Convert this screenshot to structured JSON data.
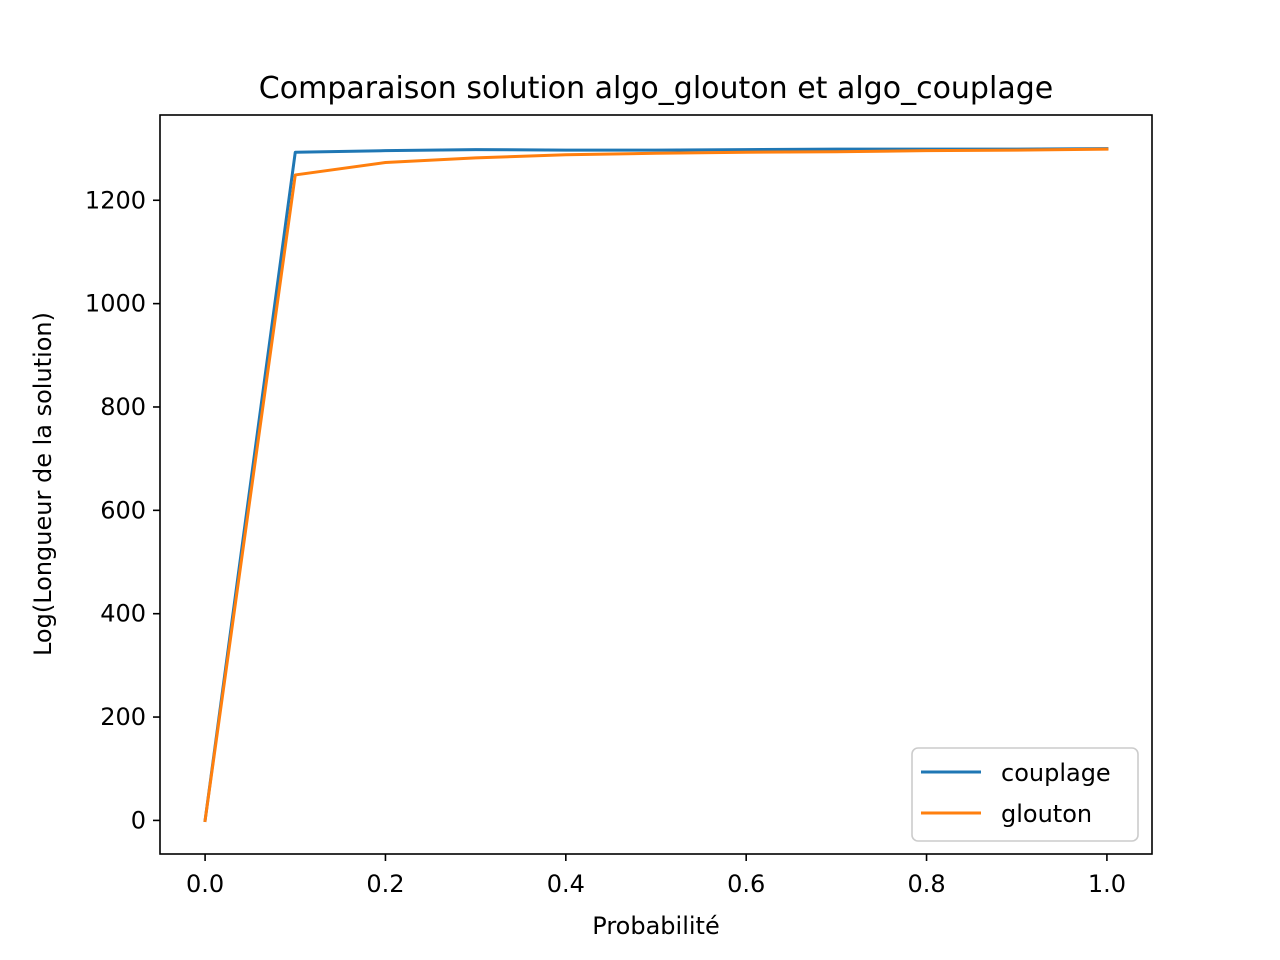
{
  "chart_data": {
    "type": "line",
    "title": "Comparaison solution algo_glouton et algo_couplage",
    "xlabel": "Probabilité",
    "ylabel": "Log(Longueur de la solution)",
    "xlim": [
      -0.05,
      1.05
    ],
    "ylim": [
      -65,
      1365
    ],
    "xticks": [
      0.0,
      0.2,
      0.4,
      0.6,
      0.8,
      1.0
    ],
    "xtick_labels": [
      "0.0",
      "0.2",
      "0.4",
      "0.6",
      "0.8",
      "1.0"
    ],
    "yticks": [
      0,
      200,
      400,
      600,
      800,
      1000,
      1200
    ],
    "ytick_labels": [
      "0",
      "200",
      "400",
      "600",
      "800",
      "1000",
      "1200"
    ],
    "grid": false,
    "legend_position": "bottom-right",
    "x": [
      0.0,
      0.1,
      0.2,
      0.3,
      0.4,
      0.5,
      0.6,
      0.7,
      0.8,
      0.9,
      1.0
    ],
    "series": [
      {
        "name": "couplage",
        "color": "#1f77b4",
        "values": [
          0,
          1293,
          1296,
          1298,
          1297,
          1297,
          1298,
          1299,
          1299,
          1299,
          1300
        ]
      },
      {
        "name": "glouton",
        "color": "#ff7f0e",
        "values": [
          0,
          1249,
          1273,
          1282,
          1288,
          1291,
          1293,
          1294,
          1296,
          1297,
          1299
        ]
      }
    ]
  }
}
